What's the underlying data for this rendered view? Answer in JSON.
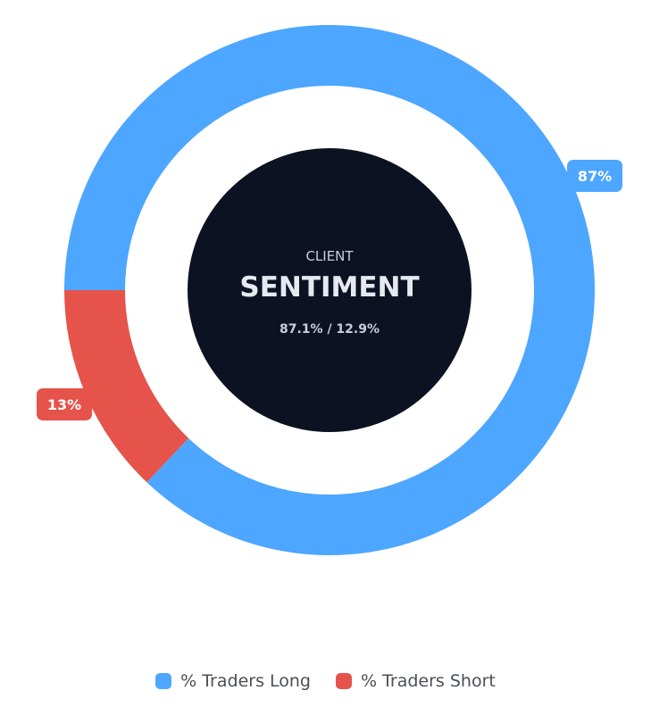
{
  "chart_data": {
    "type": "pie",
    "variant": "doughnut",
    "series": [
      {
        "name": "% Traders Long",
        "value": 87.1,
        "label": "87%",
        "color": "#4da6ff"
      },
      {
        "name": "% Traders Short",
        "value": 12.9,
        "label": "13%",
        "color": "#e5534b"
      }
    ],
    "center": {
      "label": "CLIENT",
      "title": "SENTIMENT",
      "subtitle": "87.1% / 12.9%",
      "color": "#0c1221"
    },
    "legend_position": "bottom"
  },
  "legend": {
    "items": [
      {
        "label": "% Traders Long",
        "color": "#4da6ff"
      },
      {
        "label": "% Traders Short",
        "color": "#e5534b"
      }
    ]
  }
}
